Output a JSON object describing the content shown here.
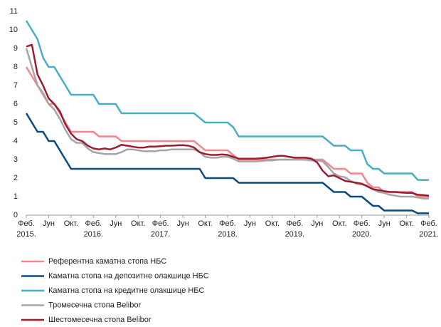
{
  "chart_data": {
    "type": "line",
    "categories": [
      "Феб. 2015.",
      null,
      null,
      null,
      "Јун",
      null,
      null,
      null,
      "Окт.",
      null,
      null,
      null,
      "Феб. 2016.",
      null,
      null,
      null,
      "Јун",
      null,
      null,
      null,
      "Окт.",
      null,
      null,
      null,
      "Феб. 2017.",
      null,
      null,
      null,
      "Јун",
      null,
      null,
      null,
      "Окт.",
      null,
      null,
      null,
      "Феб. 2018.",
      null,
      null,
      null,
      "Јун",
      null,
      null,
      null,
      "Окт.",
      null,
      null,
      null,
      "Феб. 2019.",
      null,
      null,
      null,
      "Јун",
      null,
      null,
      null,
      "Окт.",
      null,
      null,
      null,
      "Феб. 2020.",
      null,
      null,
      null,
      "Јун",
      null,
      null,
      null,
      "Окт.",
      null,
      null,
      null,
      "Феб. 2021."
    ],
    "series": [
      {
        "name": "Референтна каматна стопа НБС",
        "color": "#f4868f",
        "values": [
          8,
          7.5,
          7,
          6.5,
          6,
          6,
          5.5,
          5,
          4.5,
          4.5,
          4.5,
          4.5,
          4.5,
          4.25,
          4.25,
          4.25,
          4.25,
          4,
          4,
          4,
          4,
          4,
          4,
          4,
          4,
          4,
          4,
          4,
          4,
          4,
          4,
          3.75,
          3.5,
          3.5,
          3.5,
          3.5,
          3.5,
          3.25,
          3,
          3,
          3,
          3,
          3,
          3,
          3,
          3,
          3,
          3,
          3,
          3,
          3,
          3,
          3,
          3,
          2.75,
          2.5,
          2.5,
          2.5,
          2.25,
          2.25,
          2.25,
          1.75,
          1.5,
          1.5,
          1.25,
          1.25,
          1.25,
          1.25,
          1.25,
          1.25,
          1,
          1,
          1
        ]
      },
      {
        "name": "Каматна стопа на депозитне олакшице НБС",
        "color": "#0a4a7e",
        "values": [
          5.5,
          5,
          4.5,
          4.5,
          4,
          4,
          3.5,
          3,
          2.5,
          2.5,
          2.5,
          2.5,
          2.5,
          2.5,
          2.5,
          2.5,
          2.5,
          2.5,
          2.5,
          2.5,
          2.5,
          2.5,
          2.5,
          2.5,
          2.5,
          2.5,
          2.5,
          2.5,
          2.5,
          2.5,
          2.5,
          2.5,
          2,
          2,
          2,
          2,
          2,
          2,
          1.75,
          1.75,
          1.75,
          1.75,
          1.75,
          1.75,
          1.75,
          1.75,
          1.75,
          1.75,
          1.75,
          1.75,
          1.75,
          1.75,
          1.75,
          1.75,
          1.5,
          1.25,
          1.25,
          1.25,
          1,
          1,
          1,
          0.75,
          0.5,
          0.5,
          0.25,
          0.25,
          0.25,
          0.25,
          0.25,
          0.25,
          0.1,
          0.1,
          0.1
        ]
      },
      {
        "name": "Каматна стопа на кредитне олакшице НБС",
        "color": "#4bacc6",
        "values": [
          10.5,
          10,
          9.5,
          8.5,
          8,
          8,
          7.5,
          7,
          6.5,
          6.5,
          6.5,
          6.5,
          6.5,
          6,
          6,
          6,
          6,
          5.5,
          5.5,
          5.5,
          5.5,
          5.5,
          5.5,
          5.5,
          5.5,
          5.5,
          5.5,
          5.5,
          5.5,
          5.5,
          5.5,
          5.25,
          5,
          5,
          5,
          5,
          5,
          4.75,
          4.25,
          4.25,
          4.25,
          4.25,
          4.25,
          4.25,
          4.25,
          4.25,
          4.25,
          4.25,
          4.25,
          4.25,
          4.25,
          4.25,
          4.25,
          4.25,
          4,
          3.75,
          3.75,
          3.75,
          3.5,
          3.5,
          3.5,
          2.75,
          2.5,
          2.5,
          2.25,
          2.25,
          2.25,
          2.25,
          2.25,
          2.25,
          1.9,
          1.9,
          1.9
        ]
      },
      {
        "name": "Тромесечна стопа Belibor",
        "color": "#a5a5a5",
        "values": [
          9,
          8,
          7,
          6.6,
          6,
          5.7,
          5.2,
          4.6,
          4.1,
          3.9,
          3.9,
          3.6,
          3.4,
          3.35,
          3.3,
          3.3,
          3.3,
          3.4,
          3.55,
          3.55,
          3.5,
          3.45,
          3.45,
          3.45,
          3.5,
          3.5,
          3.55,
          3.55,
          3.55,
          3.55,
          3.55,
          3.4,
          3.15,
          3.1,
          3.1,
          3.15,
          3.15,
          3.05,
          2.9,
          2.9,
          2.9,
          2.9,
          2.92,
          2.95,
          2.95,
          3,
          3,
          3,
          3,
          3,
          2.98,
          2.95,
          2.95,
          2.9,
          2.6,
          2.25,
          2.1,
          2.05,
          1.85,
          1.7,
          1.65,
          1.6,
          1.4,
          1.25,
          1.2,
          1.1,
          1.05,
          1,
          1,
          1,
          0.95,
          0.9,
          0.9
        ]
      },
      {
        "name": "Шестомесечна стопа Belibor",
        "color": "#9b1b30",
        "values": [
          9.1,
          9.2,
          7.6,
          7,
          6.3,
          6,
          5.6,
          4.9,
          4.4,
          4.1,
          4,
          3.75,
          3.6,
          3.55,
          3.6,
          3.55,
          3.65,
          3.8,
          3.75,
          3.7,
          3.65,
          3.65,
          3.7,
          3.7,
          3.72,
          3.75,
          3.75,
          3.77,
          3.78,
          3.75,
          3.65,
          3.4,
          3.3,
          3.25,
          3.25,
          3.28,
          3.25,
          3.15,
          3.05,
          3.05,
          3.05,
          3.05,
          3.07,
          3.1,
          3.15,
          3.2,
          3.2,
          3.15,
          3.1,
          3.1,
          3.1,
          3.05,
          2.85,
          2.4,
          2.1,
          2.15,
          2,
          1.85,
          1.8,
          1.75,
          1.7,
          1.55,
          1.4,
          1.35,
          1.3,
          1.25,
          1.25,
          1.22,
          1.2,
          1.2,
          1.1,
          1.08,
          1.05
        ]
      }
    ],
    "ylim": [
      0,
      11
    ],
    "yticks": [
      0,
      1,
      2,
      3,
      4,
      5,
      6,
      7,
      8,
      9,
      10,
      11
    ],
    "grid": false
  }
}
